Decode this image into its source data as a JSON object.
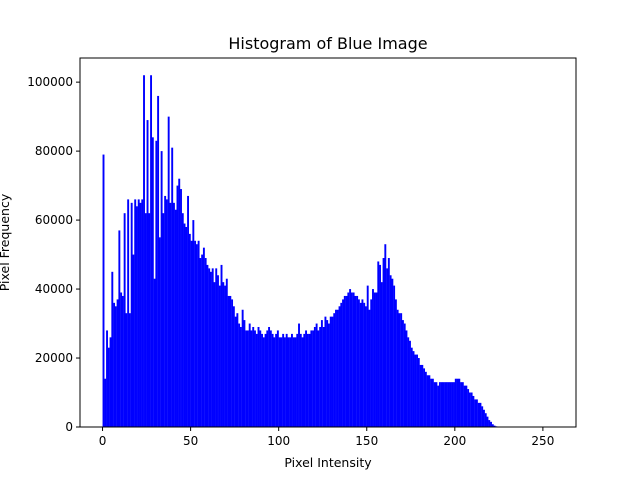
{
  "chart_data": {
    "type": "bar",
    "title": "Histogram of Blue Image",
    "xlabel": "Pixel Intensity",
    "ylabel": "Pixel Frequency",
    "xlim": [
      -12.8,
      268.8
    ],
    "ylim": [
      0,
      107000
    ],
    "xticks": [
      0,
      50,
      100,
      150,
      200,
      250
    ],
    "yticks": [
      0,
      20000,
      40000,
      60000,
      80000,
      100000
    ],
    "bar_color": "#0000ff",
    "grid": false,
    "bins": 256,
    "bin_start": 0,
    "bin_width": 1,
    "values": [
      79000,
      14000,
      28000,
      23000,
      26000,
      45000,
      36000,
      35000,
      37000,
      57000,
      39000,
      38000,
      62000,
      33000,
      66000,
      33000,
      65000,
      50000,
      66000,
      64000,
      66000,
      65000,
      66000,
      102000,
      62000,
      89000,
      62000,
      102000,
      84000,
      43000,
      83000,
      96000,
      55000,
      80000,
      62000,
      67000,
      66000,
      90000,
      65000,
      81000,
      65000,
      63000,
      70000,
      72000,
      69000,
      62000,
      59000,
      58000,
      67000,
      56000,
      54000,
      60000,
      54000,
      53000,
      54000,
      49000,
      50000,
      52000,
      49000,
      47000,
      46000,
      45000,
      46000,
      42000,
      46000,
      44000,
      41000,
      47000,
      42000,
      41000,
      43000,
      38000,
      38000,
      37000,
      35000,
      32000,
      33000,
      30000,
      29000,
      34000,
      31000,
      28000,
      28000,
      30000,
      28000,
      29000,
      28000,
      27000,
      29000,
      28000,
      27000,
      26000,
      27000,
      28000,
      29000,
      28000,
      27000,
      26000,
      27000,
      28000,
      26000,
      26000,
      27000,
      26000,
      27000,
      26000,
      26000,
      27000,
      26000,
      26000,
      27000,
      30000,
      27000,
      26000,
      27000,
      28000,
      27000,
      27000,
      28000,
      28000,
      29000,
      30000,
      28000,
      29000,
      31000,
      29000,
      32000,
      31000,
      30000,
      32000,
      32000,
      33000,
      34000,
      34000,
      35000,
      36000,
      37000,
      38000,
      38000,
      39000,
      40000,
      39000,
      39000,
      38000,
      38000,
      37000,
      36000,
      37000,
      36000,
      35000,
      41000,
      34000,
      37000,
      40000,
      39000,
      39000,
      48000,
      47000,
      42000,
      49000,
      53000,
      46000,
      49000,
      44000,
      43000,
      41000,
      37000,
      34000,
      33000,
      33000,
      31000,
      30000,
      28000,
      26000,
      25000,
      23000,
      22000,
      21000,
      21000,
      20000,
      18000,
      18000,
      17000,
      16000,
      15000,
      15000,
      14000,
      14000,
      13000,
      13000,
      12000,
      13000,
      13000,
      13000,
      13000,
      13000,
      13000,
      13000,
      13000,
      13000,
      14000,
      14000,
      14000,
      13000,
      13000,
      12000,
      12000,
      11000,
      10000,
      10000,
      9000,
      8000,
      8000,
      7000,
      7000,
      6000,
      5000,
      4000,
      3000,
      2000,
      1500,
      800,
      400,
      200,
      100,
      50,
      20,
      0,
      0,
      0,
      0,
      0,
      0,
      0,
      0,
      0,
      0,
      0,
      0,
      0,
      0,
      0,
      0,
      0,
      0,
      0,
      0,
      0,
      0,
      0,
      0,
      0,
      0,
      0
    ]
  }
}
